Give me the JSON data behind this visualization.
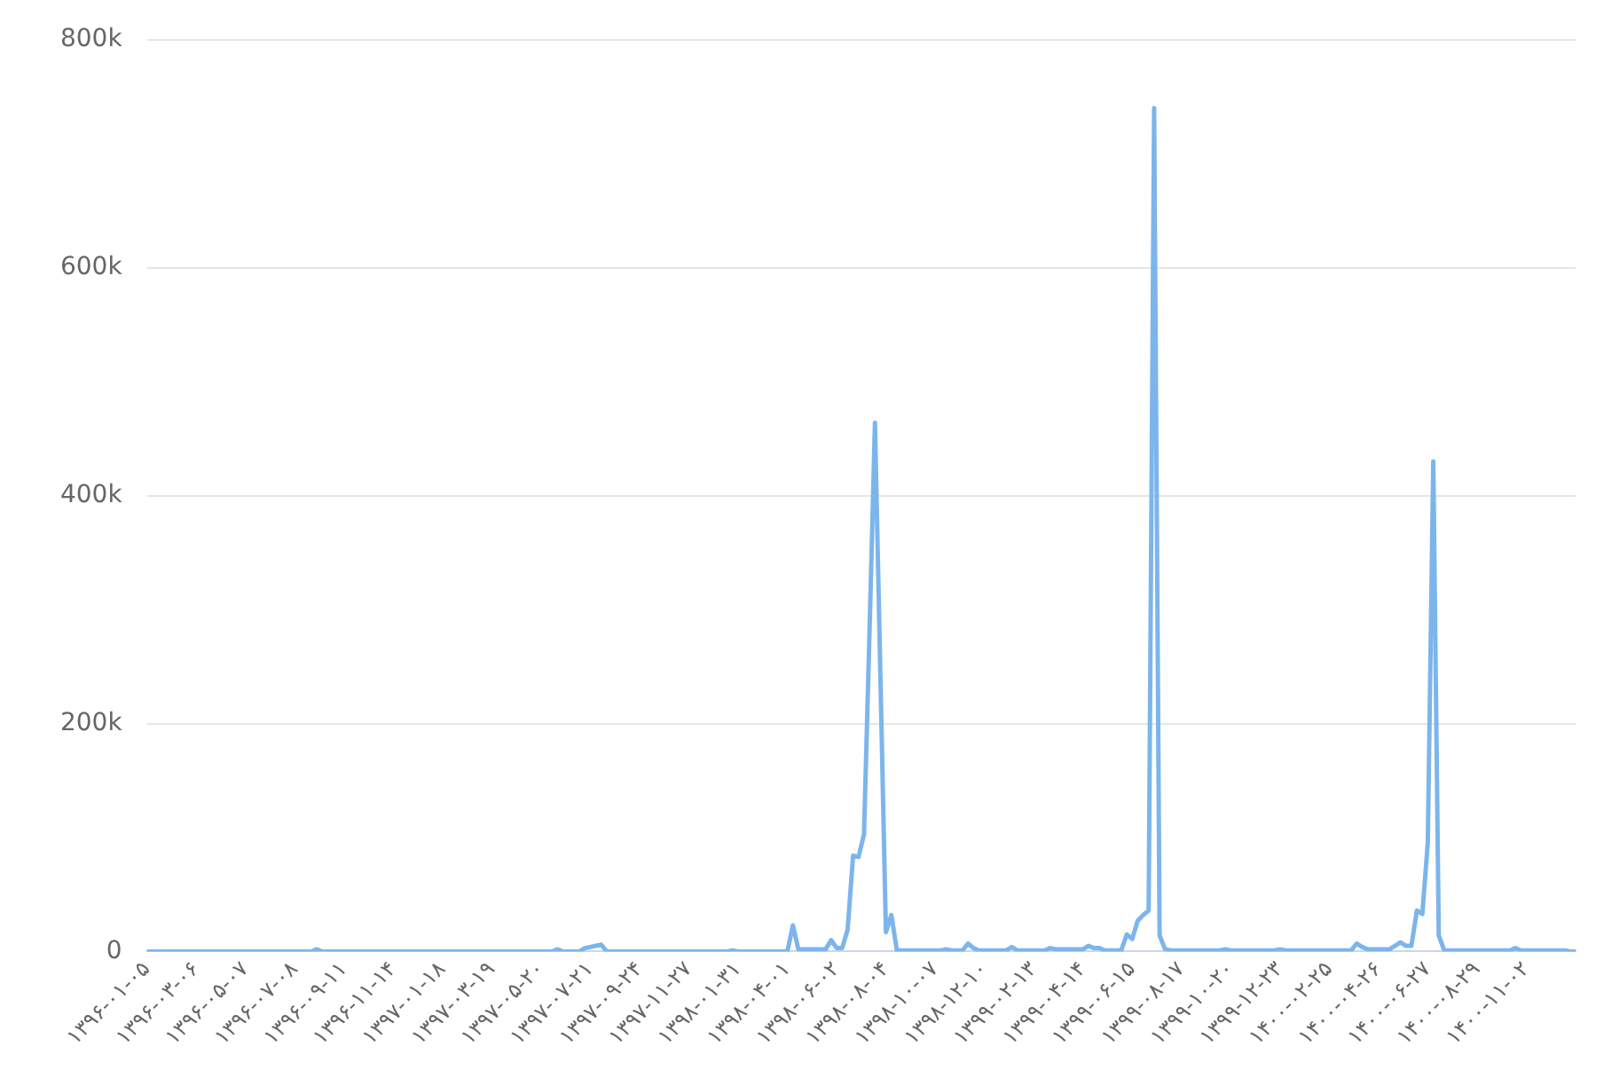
{
  "chart_data": {
    "type": "line",
    "color": "#7cb5ec",
    "marker": "none",
    "line_style": "solid",
    "grid": "y",
    "legend": false,
    "categories": [
      "۱۳۹۶-۰۱-۰۵",
      null,
      null,
      null,
      null,
      null,
      null,
      null,
      null,
      "۱۳۹۶-۰۳-۰۶",
      null,
      null,
      null,
      null,
      null,
      null,
      null,
      null,
      "۱۳۹۶-۰۵-۰۷",
      null,
      null,
      null,
      null,
      null,
      null,
      null,
      null,
      "۱۳۹۶-۰۷-۰۸",
      null,
      null,
      null,
      null,
      null,
      null,
      null,
      null,
      "۱۳۹۶-۰۹-۱۱",
      null,
      null,
      null,
      null,
      null,
      null,
      null,
      null,
      "۱۳۹۶-۱۱-۱۴",
      null,
      null,
      null,
      null,
      null,
      null,
      null,
      null,
      "۱۳۹۷-۰۱-۱۸",
      null,
      null,
      null,
      null,
      null,
      null,
      null,
      null,
      "۱۳۹۷-۰۳-۱۹",
      null,
      null,
      null,
      null,
      null,
      null,
      null,
      null,
      "۱۳۹۷-۰۵-۲۰",
      null,
      null,
      null,
      null,
      null,
      null,
      null,
      null,
      "۱۳۹۷-۰۷-۲۱",
      null,
      null,
      null,
      null,
      null,
      null,
      null,
      null,
      "۱۳۹۷-۰۹-۲۴",
      null,
      null,
      null,
      null,
      null,
      null,
      null,
      null,
      "۱۳۹۷-۱۱-۲۷",
      null,
      null,
      null,
      null,
      null,
      null,
      null,
      null,
      "۱۳۹۸-۰۱-۳۱",
      null,
      null,
      null,
      null,
      null,
      null,
      null,
      null,
      "۱۳۹۸-۰۴-۰۱",
      null,
      null,
      null,
      null,
      null,
      null,
      null,
      null,
      "۱۳۹۸-۰۶-۰۲",
      null,
      null,
      null,
      null,
      null,
      null,
      null,
      null,
      "۱۳۹۸-۰۸-۰۴",
      null,
      null,
      null,
      null,
      null,
      null,
      null,
      null,
      "۱۳۹۸-۱۰-۰۷",
      null,
      null,
      null,
      null,
      null,
      null,
      null,
      null,
      "۱۳۹۸-۱۲-۱۰",
      null,
      null,
      null,
      null,
      null,
      null,
      null,
      null,
      "۱۳۹۹-۰۲-۱۳",
      null,
      null,
      null,
      null,
      null,
      null,
      null,
      null,
      "۱۳۹۹-۰۴-۱۴",
      null,
      null,
      null,
      null,
      null,
      null,
      null,
      null,
      "۱۳۹۹-۰۶-۱۵",
      null,
      null,
      null,
      null,
      null,
      null,
      null,
      null,
      "۱۳۹۹-۰۸-۱۷",
      null,
      null,
      null,
      null,
      null,
      null,
      null,
      null,
      "۱۳۹۹-۱۰-۲۰",
      null,
      null,
      null,
      null,
      null,
      null,
      null,
      null,
      "۱۳۹۹-۱۲-۲۳",
      null,
      null,
      null,
      null,
      null,
      null,
      null,
      null,
      "۱۴۰۰-۰۲-۲۵",
      null,
      null,
      null,
      null,
      null,
      null,
      null,
      null,
      "۱۴۰۰-۰۴-۲۶",
      null,
      null,
      null,
      null,
      null,
      null,
      null,
      null,
      "۱۴۰۰-۰۶-۲۷",
      null,
      null,
      null,
      null,
      null,
      null,
      null,
      null,
      "۱۴۰۰-۰۸-۲۹",
      null,
      null,
      null,
      null,
      null,
      null,
      null,
      null,
      "۱۴۰۰-۱۱-۰۲",
      null,
      null,
      null,
      null,
      null,
      null,
      null,
      null,
      null
    ],
    "values": [
      0,
      0,
      0,
      0,
      0,
      0,
      0,
      0,
      0,
      0,
      0,
      0,
      0,
      0,
      0,
      0,
      0,
      0,
      0,
      0,
      0,
      0,
      0,
      0,
      0,
      0,
      0,
      0,
      0,
      0,
      0,
      2000,
      0,
      0,
      0,
      0,
      0,
      0,
      0,
      0,
      0,
      0,
      0,
      0,
      0,
      0,
      0,
      0,
      0,
      0,
      0,
      0,
      0,
      0,
      0,
      0,
      0,
      0,
      0,
      0,
      0,
      0,
      0,
      0,
      0,
      0,
      0,
      0,
      0,
      0,
      0,
      0,
      0,
      0,
      0,
      2000,
      0,
      0,
      0,
      0,
      3000,
      4000,
      5000,
      6000,
      0,
      0,
      0,
      0,
      0,
      0,
      0,
      0,
      0,
      0,
      0,
      0,
      0,
      0,
      0,
      0,
      0,
      0,
      0,
      0,
      0,
      0,
      0,
      1000,
      0,
      0,
      0,
      0,
      0,
      0,
      0,
      0,
      0,
      0,
      23000,
      2000,
      2000,
      2000,
      2000,
      2000,
      2000,
      10000,
      3000,
      3000,
      19000,
      84000,
      83000,
      103000,
      280000,
      464000,
      240000,
      17000,
      32000,
      1000,
      1000,
      1000,
      1000,
      1000,
      1000,
      1000,
      1000,
      1000,
      2000,
      1000,
      1000,
      1000,
      7000,
      3000,
      1000,
      1000,
      1000,
      1000,
      1000,
      1000,
      4000,
      1000,
      1000,
      1000,
      1000,
      1000,
      1000,
      3000,
      2000,
      2000,
      2000,
      2000,
      2000,
      2000,
      5000,
      3000,
      3000,
      1000,
      1000,
      1000,
      1000,
      15000,
      11000,
      27000,
      32000,
      36000,
      740000,
      14000,
      2000,
      1000,
      1000,
      1000,
      1000,
      1000,
      1000,
      1000,
      1000,
      1000,
      1000,
      2000,
      1000,
      1000,
      1000,
      1000,
      1000,
      1000,
      1000,
      1000,
      1000,
      2000,
      1000,
      1000,
      1000,
      1000,
      1000,
      1000,
      1000,
      1000,
      1000,
      1000,
      1000,
      1000,
      1000,
      7000,
      4000,
      2000,
      2000,
      2000,
      2000,
      2000,
      5000,
      8000,
      5000,
      5000,
      36000,
      33000,
      96000,
      430000,
      14000,
      1000,
      1000,
      1000,
      1000,
      1000,
      1000,
      1000,
      1000,
      1000,
      1000,
      1000,
      1000,
      1000,
      3000,
      1000,
      1000,
      1000,
      1000,
      1000,
      1000,
      1000,
      1000,
      1000,
      0,
      0
    ],
    "ylim": [
      0,
      800000
    ],
    "yticks": [
      {
        "value": 0,
        "label": "0"
      },
      {
        "value": 200000,
        "label": "200k"
      },
      {
        "value": 400000,
        "label": "400k"
      },
      {
        "value": 600000,
        "label": "600k"
      },
      {
        "value": 800000,
        "label": "800k"
      }
    ]
  }
}
